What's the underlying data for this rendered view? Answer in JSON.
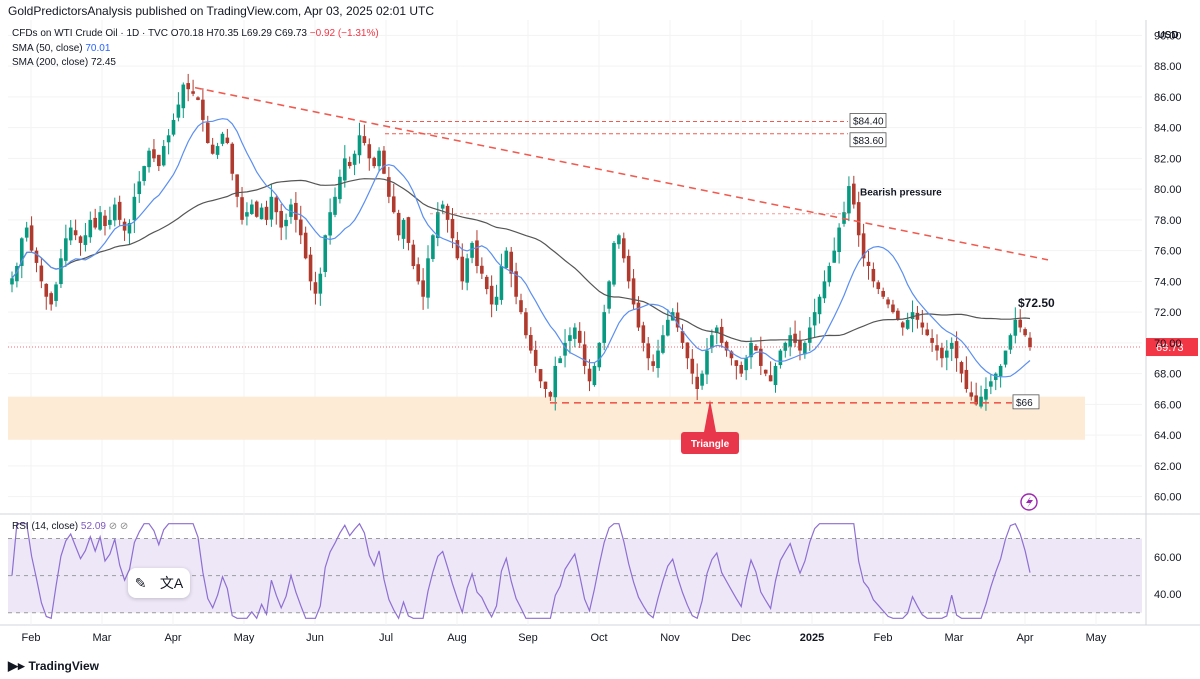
{
  "header": {
    "published": "GoldPredictorsAnalysis published on TradingView.com, Apr 03, 2025 02:01 UTC",
    "symbol": "CFDs on WTI Crude Oil · 1D · TVC",
    "open": "O70.18",
    "high": "H70.35",
    "low": "L69.29",
    "close": "C69.73",
    "change": "−0.92 (−1.31%)",
    "sma50_label": "SMA (50, close)",
    "sma50_value": "70.01",
    "sma200_label": "SMA (200, close)",
    "sma200_value": "72.45"
  },
  "rsi": {
    "label": "RSI (14, close)",
    "value": "52.09",
    "symbols": "⊘ ⊘"
  },
  "footer": {
    "brand": "TradingView"
  },
  "colors": {
    "up": "#089981",
    "down": "#b03a2e",
    "sma50": "#5b8ff0",
    "sma200": "#555555",
    "trend": "#f05a4f",
    "zone": "#fdebd6",
    "rsi": "#8e6fd1",
    "rsi_band": "#ede7f8",
    "last_price": "#f23645",
    "triangle": "#e8364a"
  },
  "chart_data": {
    "type": "candlestick",
    "title": "",
    "x_ticks": [
      "Feb",
      "Mar",
      "Apr",
      "May",
      "Jun",
      "Jul",
      "Aug",
      "Sep",
      "Oct",
      "Nov",
      "Dec",
      "2025",
      "Feb",
      "Mar",
      "Apr",
      "May"
    ],
    "y_axis": {
      "unit": "USD",
      "range": [
        59,
        91
      ],
      "ticks": [
        "90.00",
        "88.00",
        "86.00",
        "84.00",
        "82.00",
        "80.00",
        "78.00",
        "76.00",
        "74.00",
        "72.00",
        "70.00",
        "68.00",
        "66.00",
        "64.00",
        "62.00",
        "60.00"
      ]
    },
    "price_path_closes": [
      74.2,
      75.0,
      76.8,
      77.5,
      76.0,
      75.2,
      74.0,
      73.0,
      72.5,
      73.8,
      75.5,
      76.8,
      77.5,
      77.0,
      76.5,
      77.0,
      78.0,
      77.5,
      78.5,
      77.6,
      78.0,
      79.0,
      78.0,
      77.3,
      77.8,
      79.5,
      80.5,
      81.5,
      82.5,
      82.0,
      81.5,
      82.8,
      83.5,
      84.5,
      85.5,
      86.8,
      86.5,
      86.2,
      85.8,
      84.5,
      83.0,
      82.3,
      82.8,
      83.6,
      83.0,
      81.0,
      79.5,
      78.0,
      78.5,
      79.0,
      78.2,
      78.8,
      78.0,
      79.5,
      78.5,
      77.5,
      78.0,
      79.0,
      78.0,
      77.0,
      75.5,
      74.0,
      73.2,
      74.5,
      77.0,
      78.5,
      79.5,
      80.8,
      82.0,
      81.5,
      82.3,
      83.5,
      83.0,
      82.0,
      81.5,
      82.5,
      81.0,
      79.5,
      78.5,
      77.0,
      78.0,
      76.5,
      75.0,
      74.0,
      73.0,
      75.5,
      77.0,
      78.5,
      79.0,
      78.0,
      76.8,
      75.5,
      74.0,
      75.5,
      76.5,
      75.0,
      74.5,
      73.5,
      72.5,
      73.0,
      75.0,
      76.0,
      74.5,
      73.0,
      72.0,
      70.5,
      69.5,
      68.5,
      67.5,
      67.0,
      66.5,
      68.5,
      69.0,
      70.0,
      70.5,
      71.0,
      70.0,
      68.5,
      67.5,
      68.5,
      70.0,
      72.0,
      74.0,
      76.5,
      77.0,
      75.5,
      74.0,
      72.5,
      71.0,
      70.0,
      69.0,
      68.5,
      69.5,
      70.5,
      71.5,
      72.0,
      71.0,
      70.0,
      69.0,
      68.0,
      67.0,
      68.0,
      69.5,
      70.5,
      71.0,
      70.0,
      69.5,
      69.0,
      68.5,
      68.0,
      69.0,
      70.0,
      69.5,
      68.5,
      68.0,
      67.5,
      68.5,
      69.5,
      70.0,
      70.5,
      70.0,
      69.5,
      70.0,
      71.0,
      72.0,
      73.0,
      74.0,
      75.0,
      76.0,
      77.5,
      78.5,
      80.2,
      79.0,
      77.0,
      75.5,
      75.0,
      74.0,
      73.5,
      73.0,
      72.5,
      72.0,
      71.5,
      71.0,
      71.5,
      72.0,
      71.5,
      71.0,
      70.5,
      70.0,
      69.5,
      69.0,
      69.5,
      70.0,
      69.0,
      68.0,
      67.0,
      66.5,
      66.0,
      66.5,
      67.0,
      67.5,
      68.0,
      68.5,
      69.5,
      70.5,
      71.5,
      71.0,
      70.5,
      69.73
    ],
    "rsi_pane": {
      "ticks": [
        "60.00",
        "40.00"
      ],
      "range": [
        25,
        80
      ]
    },
    "annotations": {
      "levels": [
        "$84.40",
        "$83.60",
        "$72.50",
        "$66"
      ],
      "labels": [
        "Bearish pressure"
      ],
      "pattern": "Triangle",
      "last_price": "69.73"
    }
  }
}
